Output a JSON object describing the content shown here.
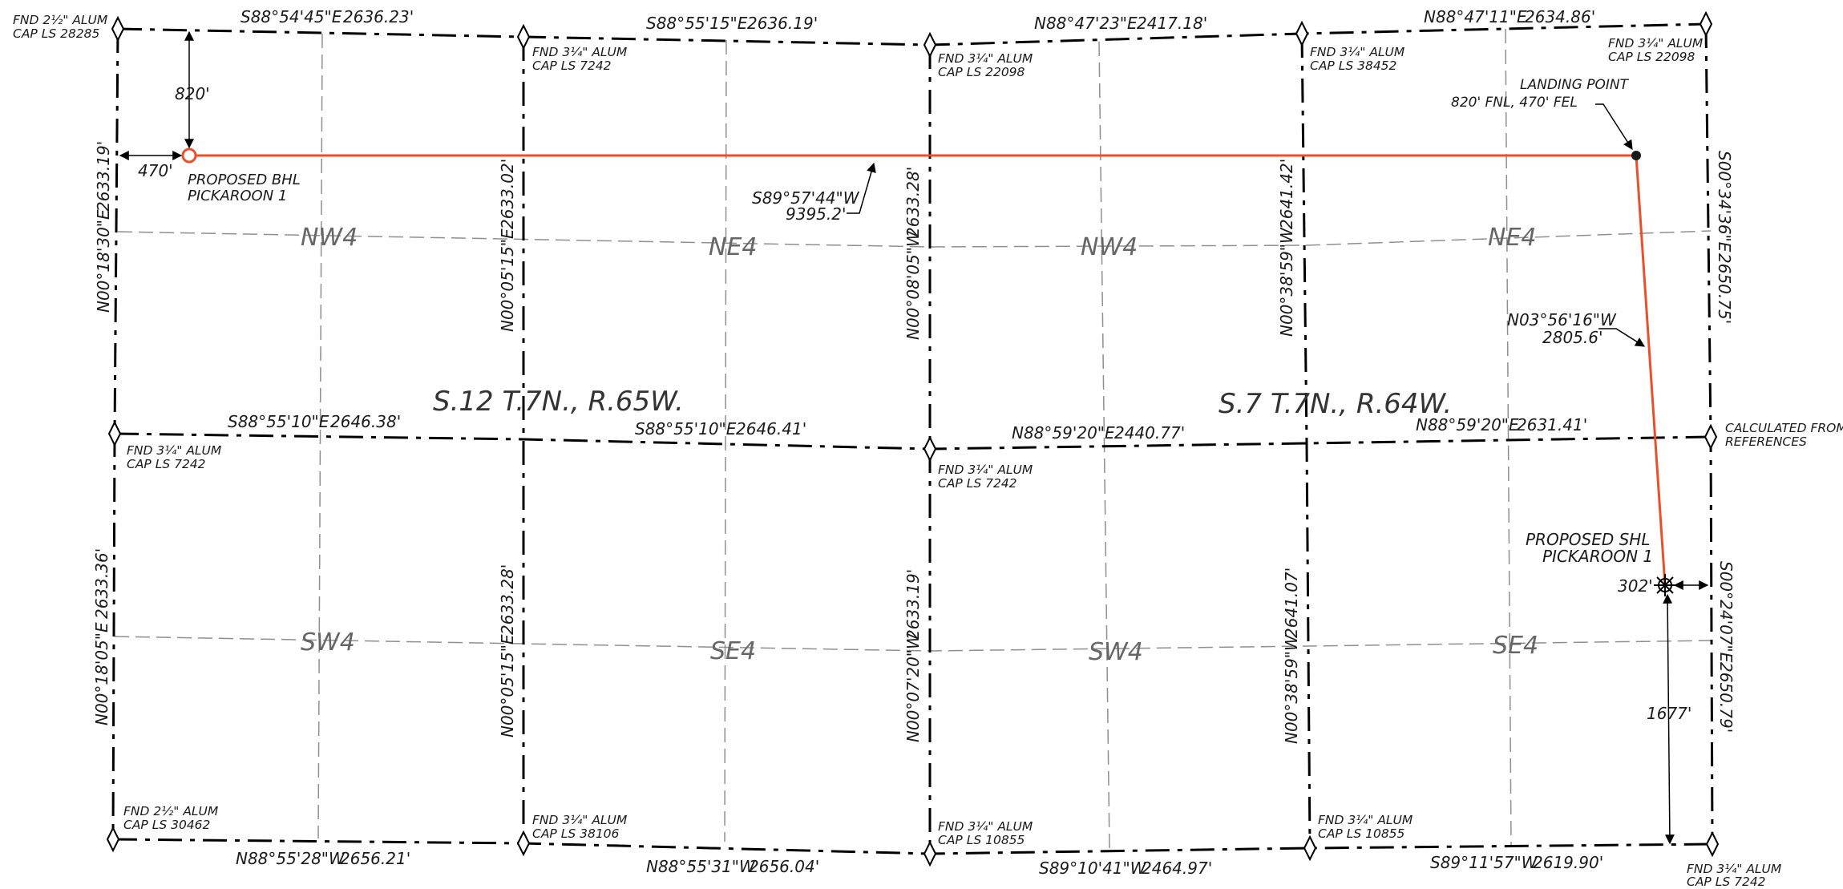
{
  "sections": {
    "west": "S.12 T.7N., R.65W.",
    "east": "S.7 T.7N., R.64W."
  },
  "quarters": {
    "nw4": "NW4",
    "ne4": "NE4",
    "sw4": "SW4",
    "se4": "SE4"
  },
  "bearings": {
    "top_1": "S88°54'45\"E",
    "top_1_dist": "2636.23'",
    "top_2": "S88°55'15\"E",
    "top_2_dist": "2636.19'",
    "top_3": "N88°47'23\"E",
    "top_3_dist": "2417.18'",
    "top_4": "N88°47'11\"E",
    "top_4_dist": "2634.86'",
    "mid_1": "S88°55'10\"E",
    "mid_1_dist": "2646.38'",
    "mid_2": "S88°55'10\"E",
    "mid_2_dist": "2646.41'",
    "mid_3": "N88°59'20\"E",
    "mid_3_dist": "2440.77'",
    "mid_4": "N88°59'20\"E",
    "mid_4_dist": "2631.41'",
    "bot_1": "N88°55'28\"W",
    "bot_1_dist": "2656.21'",
    "bot_2": "N88°55'31\"W",
    "bot_2_dist": "2656.04'",
    "bot_3": "S89°10'41\"W",
    "bot_3_dist": "2464.97'",
    "bot_4": "S89°11'57\"W",
    "bot_4_dist": "2619.90'",
    "vl_top": "N00°18'30\"E",
    "vl_top_dist": "2633.19'",
    "vl_bot": "N00°18'05\"E",
    "vl_bot_dist": "2633.36'",
    "v2_top": "N00°05'15\"E",
    "v2_top_dist": "2633.02'",
    "v2_bot": "N00°05'15\"E",
    "v2_bot_dist": "2633.28'",
    "vm_top": "N00°08'05\"W",
    "vm_top_dist": "2633.28'",
    "vm_bot": "N00°07'20\"W",
    "vm_bot_dist": "2633.19'",
    "v4_top": "N00°38'59\"W",
    "v4_top_dist": "2641.42'",
    "v4_bot": "N00°38'59\"W",
    "v4_bot_dist": "2641.07'",
    "vr_top": "S00°34'36\"E",
    "vr_top_dist": "2650.75'",
    "vr_bot": "S00°24'07\"E",
    "vr_bot_dist": "2650.79'"
  },
  "monuments": {
    "nw_a": "FND 2½\" ALUM",
    "nw_b": "CAP LS 28285",
    "n1_a": "FND 3¼\" ALUM",
    "n1_b": "CAP LS 7242",
    "n2_a": "FND 3¼\" ALUM",
    "n2_b": "CAP LS 22098",
    "n3_a": "FND 3¼\" ALUM",
    "n3_b": "CAP LS 38452",
    "ne_a": "FND 3¼\" ALUM",
    "ne_b": "CAP LS 22098",
    "w_a": "FND 3¼\" ALUM",
    "w_b": "CAP LS 7242",
    "c_a": "FND 3¼\" ALUM",
    "c_b": "CAP LS 7242",
    "e_a": "CALCULATED FROM",
    "e_b": "REFERENCES",
    "sw_a": "FND 2½\" ALUM",
    "sw_b": "CAP LS 30462",
    "s1_a": "FND 3¼\" ALUM",
    "s1_b": "CAP LS 38106",
    "s2_a": "FND 3¼\" ALUM",
    "s2_b": "CAP LS 10855",
    "s3_a": "FND 3¼\" ALUM",
    "s3_b": "CAP LS 10855",
    "se_a": "FND 3¼\" ALUM",
    "se_b": "CAP LS 7242"
  },
  "well": {
    "bhl_a": "PROPOSED BHL",
    "bhl_b": "PICKAROON 1",
    "shl_a": "PROPOSED SHL",
    "shl_b": "PICKAROON 1",
    "landing_a": "LANDING POINT",
    "landing_b": "820' FNL, 470' FEL",
    "lateral_bearing": "S89°57'44\"W",
    "lateral_dist": "9395.2'",
    "build_bearing": "N03°56'16\"W",
    "build_dist": "2805.6'",
    "dim_820": "820'",
    "dim_470": "470'",
    "dim_302": "302'",
    "dim_1677": "1677'"
  },
  "colors": {
    "wellpath": "#e84f2a",
    "section_line": "#000000",
    "quarter_line": "#8f8f8f"
  }
}
